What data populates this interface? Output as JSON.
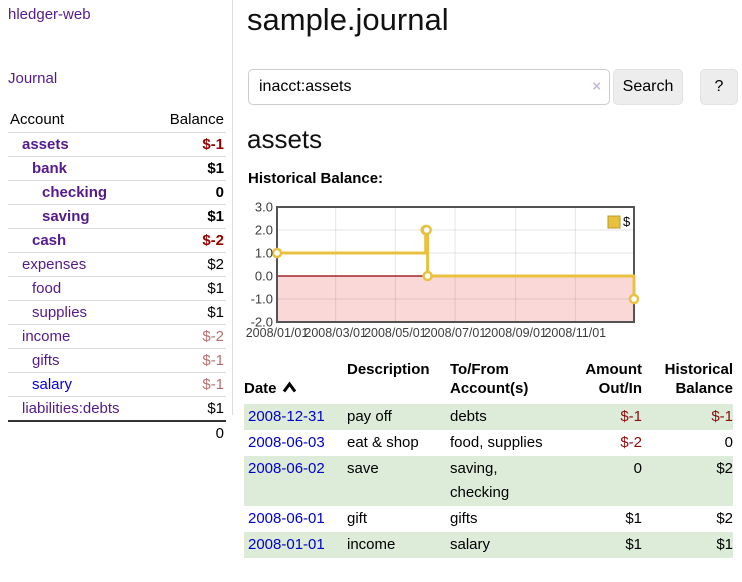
{
  "app": {
    "brand": "hledger-web",
    "nav_journal": "Journal"
  },
  "sidebar": {
    "header": {
      "account": "Account",
      "balance": "Balance"
    },
    "accounts": [
      {
        "name": "assets",
        "indent": "1",
        "inacct": "true",
        "tone": "neg",
        "link": "visited",
        "balance": "$-1"
      },
      {
        "name": "bank",
        "indent": "2",
        "inacct": "true",
        "tone": "",
        "link": "visited",
        "balance": "$1"
      },
      {
        "name": "checking",
        "indent": "3",
        "inacct": "true",
        "tone": "",
        "link": "visited",
        "balance": "0"
      },
      {
        "name": "saving",
        "indent": "3",
        "inacct": "true",
        "tone": "",
        "link": "visited",
        "balance": "$1"
      },
      {
        "name": "cash",
        "indent": "2",
        "inacct": "true",
        "tone": "neg",
        "link": "visited",
        "balance": "$-2"
      },
      {
        "name": "expenses",
        "indent": "1",
        "inacct": "false",
        "tone": "",
        "link": "visited",
        "balance": "$2"
      },
      {
        "name": "food",
        "indent": "2",
        "inacct": "false",
        "tone": "",
        "link": "visited",
        "balance": "$1"
      },
      {
        "name": "supplies",
        "indent": "2",
        "inacct": "false",
        "tone": "",
        "link": "visited",
        "balance": "$1"
      },
      {
        "name": "income",
        "indent": "1",
        "inacct": "false",
        "tone": "negsoft",
        "link": "visited",
        "balance": "$-2"
      },
      {
        "name": "gifts",
        "indent": "2",
        "inacct": "false",
        "tone": "negsoft",
        "link": "visited",
        "balance": "$-1"
      },
      {
        "name": "salary",
        "indent": "2",
        "inacct": "false",
        "tone": "negsoft",
        "link": "unvisited",
        "balance": "$-1"
      },
      {
        "name": "liabilities:debts",
        "indent": "1",
        "inacct": "false",
        "tone": "",
        "link": "visited",
        "balance": "$1"
      }
    ],
    "total": "0"
  },
  "main": {
    "title": "sample.journal",
    "search": {
      "value": "inacct:assets",
      "clear_icon": "×",
      "button": "Search",
      "help_button": "?"
    },
    "account_heading": "assets",
    "chart_label": "Historical Balance:"
  },
  "chart_data": {
    "type": "line",
    "step": true,
    "title": "Historical Balance of assets",
    "legend_position": "top-right",
    "grid": true,
    "ylim": [
      -2,
      3
    ],
    "x_total_days": 365,
    "x_ticks": [
      {
        "label": "2008/01/01",
        "day": 0
      },
      {
        "label": "2008/03/01",
        "day": 60
      },
      {
        "label": "2008/05/01",
        "day": 121
      },
      {
        "label": "2008/07/01",
        "day": 182
      },
      {
        "label": "2008/09/01",
        "day": 244
      },
      {
        "label": "2008/11/01",
        "day": 305
      }
    ],
    "y_tick_labels": [
      {
        "label": "3.0",
        "value": 3
      },
      {
        "label": "2.0",
        "value": 2
      },
      {
        "label": "1.0",
        "value": 1
      },
      {
        "label": "0.0",
        "value": 0
      },
      {
        "label": "-1.0",
        "value": -1
      },
      {
        "label": "-2.0",
        "value": -2
      }
    ],
    "y_gridline_values": [
      2,
      1,
      -1
    ],
    "series": [
      {
        "name": "$",
        "color": "#e8c23f",
        "points": [
          {
            "date": "2008-01-01",
            "day": 0,
            "value": 1
          },
          {
            "date": "2008-06-01",
            "day": 152,
            "value": 2
          },
          {
            "date": "2008-06-02",
            "day": 153,
            "value": 2
          },
          {
            "date": "2008-06-03",
            "day": 154,
            "value": 0
          },
          {
            "date": "2008-12-31",
            "day": 365,
            "value": -1
          }
        ]
      }
    ],
    "colors": {
      "below_zero_fill": "#fbd8d8",
      "zero_line": "#8b0000",
      "border": "#545454",
      "axis_text": "#3c3c3c"
    }
  },
  "register": {
    "columns": {
      "date": "Date",
      "description": "Description",
      "accounts": "To/From\nAccount(s)",
      "amount": "Amount\nOut/In",
      "balance": "Historical\nBalance"
    },
    "rows": [
      {
        "date": "2008-12-31",
        "description": "pay off",
        "accounts": "debts",
        "amount": "$-1",
        "amount_tone": "neg",
        "balance": "$-1",
        "balance_tone": "neg"
      },
      {
        "date": "2008-06-03",
        "description": "eat & shop",
        "accounts": "food, supplies",
        "amount": "$-2",
        "amount_tone": "neg",
        "balance": "0",
        "balance_tone": ""
      },
      {
        "date": "2008-06-02",
        "description": "save",
        "accounts": "saving,\nchecking",
        "amount": "0",
        "amount_tone": "",
        "balance": "$2",
        "balance_tone": ""
      },
      {
        "date": "2008-06-01",
        "description": "gift",
        "accounts": "gifts",
        "amount": "$1",
        "amount_tone": "",
        "balance": "$2",
        "balance_tone": ""
      },
      {
        "date": "2008-01-01",
        "description": "income",
        "accounts": "salary",
        "amount": "$1",
        "amount_tone": "",
        "balance": "$1",
        "balance_tone": ""
      }
    ]
  }
}
